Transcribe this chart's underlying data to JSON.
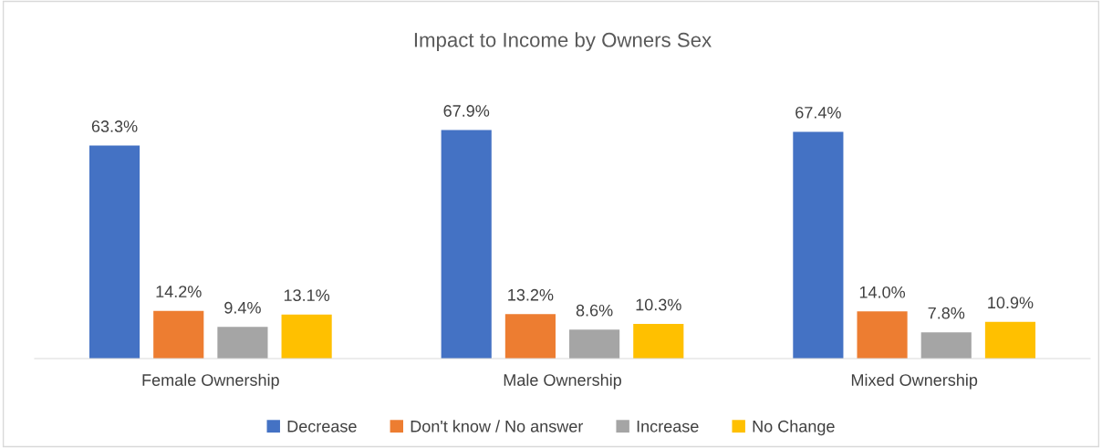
{
  "chart_data": {
    "type": "bar",
    "title": "Impact to Income by Owners Sex",
    "categories": [
      "Female Ownership",
      "Male Ownership",
      "Mixed Ownership"
    ],
    "series": [
      {
        "name": "Decrease",
        "color": "#4472c4",
        "values": [
          63.3,
          67.9,
          67.4
        ],
        "value_labels": [
          "63.3%",
          "67.9%",
          "67.4%"
        ]
      },
      {
        "name": "Don't know / No answer",
        "color": "#ed7d31",
        "values": [
          14.2,
          13.2,
          14.0
        ],
        "value_labels": [
          "14.2%",
          "13.2%",
          "14.0%"
        ]
      },
      {
        "name": "Increase",
        "color": "#a5a5a5",
        "values": [
          9.4,
          8.6,
          7.8
        ],
        "value_labels": [
          "9.4%",
          "8.6%",
          "7.8%"
        ]
      },
      {
        "name": "No Change",
        "color": "#ffc000",
        "values": [
          13.1,
          10.3,
          10.9
        ],
        "value_labels": [
          "13.1%",
          "10.3%",
          "10.9%"
        ]
      }
    ],
    "legend": "bottom"
  }
}
